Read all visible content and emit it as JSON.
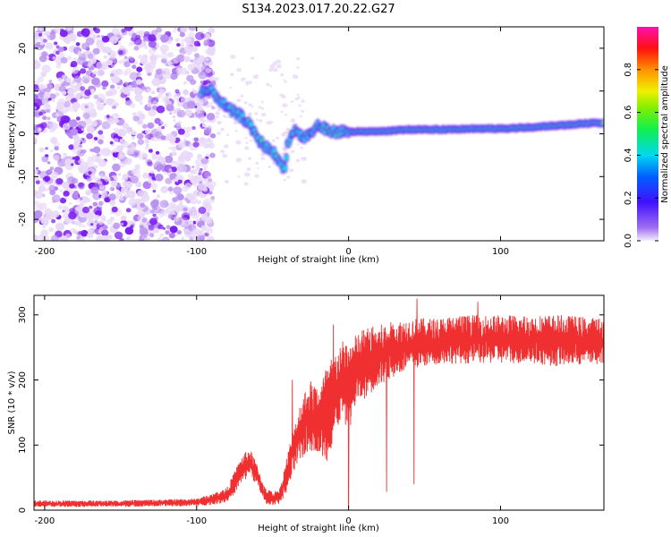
{
  "title": "S134.2023.017.20.22.G27",
  "colors": {
    "snr_line": "#f03030",
    "axis": "#000000",
    "colormap": [
      "#e8d8f8",
      "#b890f0",
      "#7a1cf0",
      "#3020ff",
      "#1080ff",
      "#00e0e0",
      "#20f020",
      "#e0f000",
      "#ff8000",
      "#ff1010",
      "#ff20c0"
    ]
  },
  "chart_data": [
    {
      "type": "heatmap",
      "xlabel": "Height of straight line (km)",
      "ylabel": "Frequency (Hz)",
      "xlim": [
        -207,
        168
      ],
      "ylim": [
        -25,
        25
      ],
      "x_ticks": [
        -200,
        -100,
        0,
        100
      ],
      "x_tick_labels": [
        "-200",
        "-100",
        "0",
        "100"
      ],
      "y_ticks": [
        -20,
        -10,
        0,
        10,
        20
      ],
      "y_tick_labels": [
        "-20",
        "-10",
        "0",
        "10",
        "20"
      ],
      "colorbar": {
        "label": "Normalized spectral amplitude",
        "range": [
          0,
          1
        ],
        "ticks": [
          0.0,
          0.2,
          0.4,
          0.6,
          0.8
        ],
        "tick_labels": [
          "0.0",
          "0.2",
          "0.4",
          "0.6",
          "0.8"
        ]
      },
      "ridge": {
        "points": [
          [
            -97,
            10
          ],
          [
            -90,
            10
          ],
          [
            -85,
            8
          ],
          [
            -80,
            6
          ],
          [
            -75,
            5
          ],
          [
            -70,
            4
          ],
          [
            -65,
            2
          ],
          [
            -60,
            -1
          ],
          [
            -55,
            -3
          ],
          [
            -50,
            -4
          ],
          [
            -45,
            -7
          ],
          [
            -42,
            -8
          ],
          [
            -40,
            -2
          ],
          [
            -35,
            1
          ],
          [
            -30,
            -1
          ],
          [
            -25,
            0
          ],
          [
            -20,
            2
          ],
          [
            -15,
            1
          ],
          [
            -10,
            0.5
          ],
          [
            0,
            0.5
          ],
          [
            20,
            0.5
          ],
          [
            40,
            1
          ],
          [
            60,
            1
          ],
          [
            80,
            1.2
          ],
          [
            100,
            1.2
          ],
          [
            120,
            1.5
          ],
          [
            140,
            2
          ],
          [
            160,
            2.5
          ],
          [
            168,
            2.5
          ]
        ],
        "high_amplitude_from_km": 0
      },
      "noise_region_x": [
        -207,
        -97
      ]
    },
    {
      "type": "line",
      "xlabel": "Height of straight line (km)",
      "ylabel": "SNR (10 * v/v)",
      "xlim": [
        -207,
        168
      ],
      "ylim": [
        0,
        330
      ],
      "x_ticks": [
        -200,
        -100,
        0,
        100
      ],
      "x_tick_labels": [
        "-200",
        "-100",
        "0",
        "100"
      ],
      "y_ticks": [
        0,
        100,
        200,
        300
      ],
      "y_tick_labels": [
        "0",
        "100",
        "200",
        "300"
      ],
      "series": [
        {
          "envelope": [
            [
              -207,
              5,
              15
            ],
            [
              -150,
              5,
              15
            ],
            [
              -100,
              6,
              18
            ],
            [
              -90,
              8,
              25
            ],
            [
              -80,
              12,
              35
            ],
            [
              -75,
              25,
              60
            ],
            [
              -70,
              40,
              85
            ],
            [
              -65,
              55,
              95
            ],
            [
              -60,
              35,
              70
            ],
            [
              -55,
              10,
              35
            ],
            [
              -50,
              8,
              28
            ],
            [
              -45,
              10,
              35
            ],
            [
              -40,
              30,
              90
            ],
            [
              -35,
              60,
              140
            ],
            [
              -30,
              80,
              180
            ],
            [
              -25,
              90,
              200
            ],
            [
              -20,
              90,
              190
            ],
            [
              -15,
              70,
              220
            ],
            [
              -10,
              100,
              240
            ],
            [
              -5,
              140,
              260
            ],
            [
              0,
              120,
              260
            ],
            [
              5,
              160,
              270
            ],
            [
              10,
              170,
              280
            ],
            [
              20,
              190,
              285
            ],
            [
              30,
              205,
              290
            ],
            [
              40,
              215,
              295
            ],
            [
              50,
              220,
              295
            ],
            [
              60,
              225,
              295
            ],
            [
              70,
              225,
              300
            ],
            [
              80,
              225,
              300
            ],
            [
              100,
              225,
              300
            ],
            [
              120,
              225,
              300
            ],
            [
              140,
              220,
              300
            ],
            [
              168,
              225,
              295
            ]
          ],
          "spikes": [
            [
              -37,
              200
            ],
            [
              -10,
              285
            ],
            [
              0,
              5
            ],
            [
              25,
              28
            ],
            [
              43,
              40
            ],
            [
              45,
              325
            ],
            [
              85,
              320
            ]
          ]
        }
      ]
    }
  ]
}
